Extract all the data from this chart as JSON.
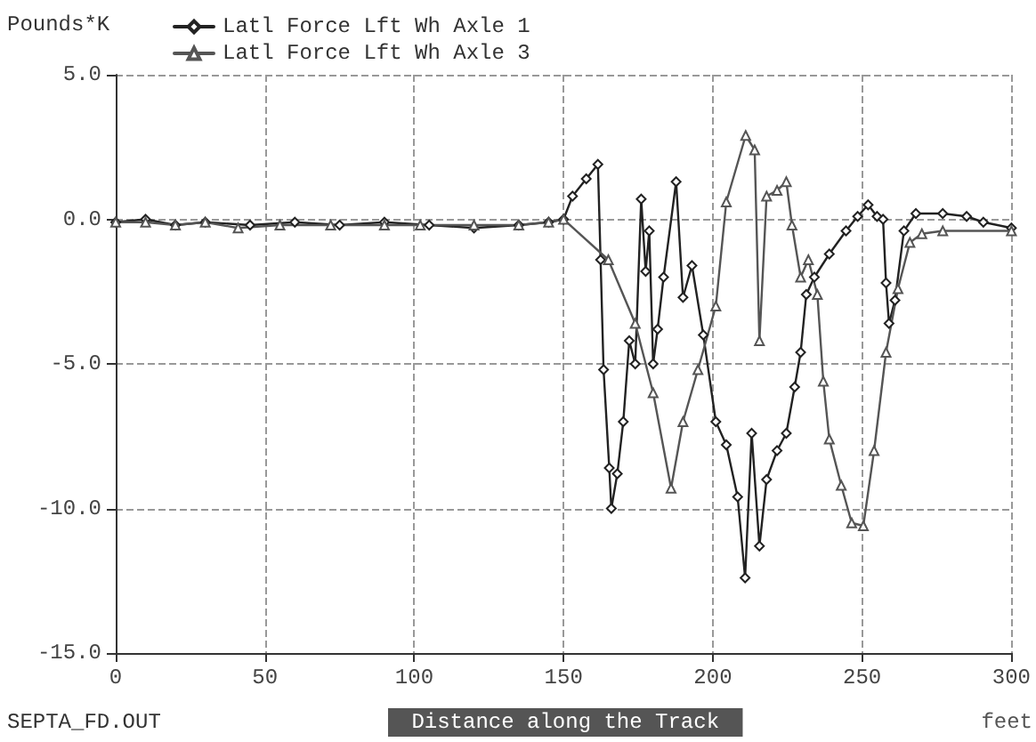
{
  "chart_data": {
    "type": "line",
    "ylabel": "Pounds*K",
    "xlabel": "Distance along the Track",
    "annotations": [
      "SEPTA_FD.OUT",
      "feet"
    ],
    "xlim": [
      0,
      300
    ],
    "xticks": [
      0,
      50,
      100,
      150,
      200,
      250,
      300
    ],
    "ylim": [
      -15,
      5
    ],
    "yticks": [
      {
        "value": 5,
        "label": "5.0"
      },
      {
        "value": 0,
        "label": "0.0"
      },
      {
        "value": -5,
        "label": "-5.0"
      },
      {
        "value": -10,
        "label": "-10.0"
      },
      {
        "value": -15,
        "label": "-15.0"
      }
    ],
    "grid": true,
    "legend": "top left",
    "line_style": "solid",
    "series": [
      {
        "name": "Latl Force Lft Wh Axle 1",
        "color": "#222222",
        "marker": "diamond",
        "x": [
          0,
          10,
          20,
          30,
          45,
          60,
          75,
          90,
          105,
          120,
          135,
          145,
          150,
          153,
          157.6,
          161.5,
          162.4,
          163.4,
          165.3,
          166,
          168,
          170,
          172,
          174,
          176,
          177.5,
          178.7,
          180,
          181.5,
          183.5,
          187.7,
          190,
          193,
          196.8,
          201,
          204.5,
          208.3,
          210.8,
          213,
          215.6,
          218,
          221.5,
          224.6,
          227.4,
          229.4,
          231.3,
          234,
          239,
          244.6,
          248.5,
          252,
          255,
          257,
          258,
          259,
          261,
          264,
          268,
          277,
          285,
          290.6,
          300
        ],
        "values": [
          -0.1,
          0,
          -0.2,
          -0.1,
          -0.2,
          -0.1,
          -0.2,
          -0.1,
          -0.2,
          -0.3,
          -0.2,
          -0.1,
          0,
          0.8,
          1.4,
          1.9,
          -1.4,
          -5.2,
          -8.6,
          -10,
          -8.8,
          -7,
          -4.2,
          -5,
          0.7,
          -1.8,
          -0.4,
          -5,
          -3.8,
          -2,
          1.3,
          -2.7,
          -1.6,
          -4,
          -7,
          -7.8,
          -9.6,
          -12.4,
          -7.4,
          -11.3,
          -9,
          -8,
          -7.4,
          -5.8,
          -4.6,
          -2.6,
          -2,
          -1.2,
          -0.4,
          0.1,
          0.5,
          0.1,
          0,
          -2.2,
          -3.6,
          -2.8,
          -0.4,
          0.2,
          0.2,
          0.1,
          -0.1,
          -0.3
        ]
      },
      {
        "name": "Latl Force Lft Wh Axle 3",
        "color": "#555555",
        "marker": "triangle",
        "x": [
          0,
          10,
          20,
          30,
          41,
          55,
          72,
          90,
          102,
          120,
          135,
          145,
          150,
          165,
          174,
          180,
          186,
          190,
          195,
          201,
          204.5,
          211,
          214,
          215.6,
          218,
          221.5,
          224.6,
          226.5,
          229.4,
          232,
          235,
          237,
          239,
          243,
          246.5,
          250.4,
          254,
          258,
          262,
          266,
          270,
          277,
          300
        ],
        "values": [
          -0.1,
          -0.1,
          -0.2,
          -0.1,
          -0.3,
          -0.2,
          -0.2,
          -0.2,
          -0.2,
          -0.2,
          -0.2,
          -0.1,
          0,
          -1.4,
          -3.6,
          -6,
          -9.3,
          -7,
          -5.2,
          -3,
          0.6,
          2.9,
          2.4,
          -4.2,
          0.8,
          1,
          1.3,
          -0.2,
          -2,
          -1.4,
          -2.6,
          -5.6,
          -7.6,
          -9.2,
          -10.5,
          -10.6,
          -8,
          -4.6,
          -2.4,
          -0.8,
          -0.5,
          -0.4,
          -0.4
        ]
      }
    ]
  }
}
